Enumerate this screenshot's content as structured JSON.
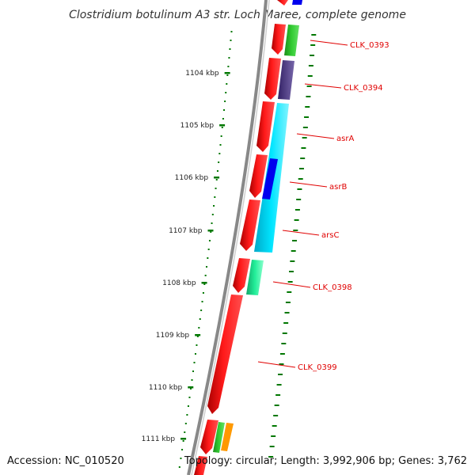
{
  "title": "Clostridium botulinum A3 str. Loch Maree, complete genome",
  "footer": {
    "accession": "Accession: NC_010520",
    "summary": "Topology: circular; Length: 3,992,906 bp; Genes: 3,762"
  },
  "ticks": [
    "1104 kbp",
    "1105 kbp",
    "1106 kbp",
    "1107 kbp",
    "1108 kbp",
    "1109 kbp",
    "1110 kbp",
    "1111 kbp"
  ],
  "genes": [
    "CLK_0393",
    "CLK_0394",
    "asrA",
    "asrB",
    "arsC",
    "CLK_0398",
    "CLK_0399"
  ],
  "colors": {
    "cds_forward": "#ff0000",
    "backbone": "#888888",
    "tick_marks": "#007700",
    "label_text": "#e00000",
    "label_line": "#e00000",
    "cog_green": "#33cc33",
    "cog_purple": "#554488",
    "cog_cyan": "#00e5ff",
    "cog_blue": "#0000ee",
    "cog_teal": "#22ee99",
    "cog_orange": "#ff9900"
  }
}
